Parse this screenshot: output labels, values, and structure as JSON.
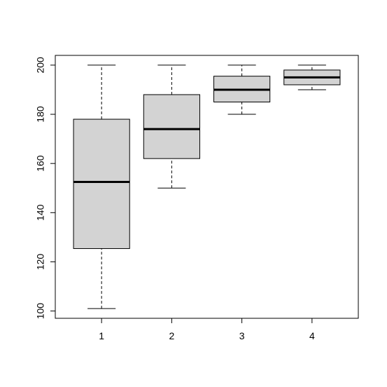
{
  "chart_data": {
    "type": "boxplot",
    "categories": [
      "1",
      "2",
      "3",
      "4"
    ],
    "min": [
      101,
      150,
      180,
      190
    ],
    "q1": [
      125.4,
      162,
      185,
      192
    ],
    "median": [
      152.5,
      174,
      190,
      195
    ],
    "q3": [
      178,
      188,
      195.5,
      198
    ],
    "max": [
      200,
      200,
      200,
      200
    ],
    "color": "#d3d3d3",
    "ylim": [
      97.04,
      203.96
    ],
    "yticks": [
      100,
      120,
      140,
      160,
      180,
      200
    ]
  }
}
